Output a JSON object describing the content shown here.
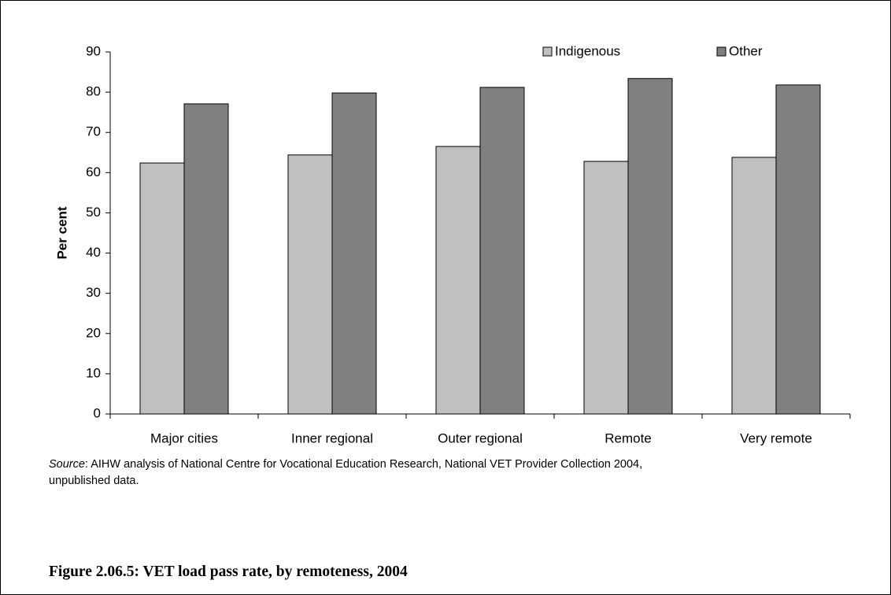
{
  "chart_data": {
    "type": "bar",
    "categories": [
      "Major cities",
      "Inner regional",
      "Outer regional",
      "Remote",
      "Very remote"
    ],
    "series": [
      {
        "name": "Indigenous",
        "color": "#c0c0c0",
        "values": [
          62.4,
          64.4,
          66.5,
          62.8,
          63.8
        ]
      },
      {
        "name": "Other",
        "color": "#808080",
        "values": [
          77.1,
          79.8,
          81.2,
          83.4,
          81.8
        ]
      }
    ],
    "ylabel": "Per cent",
    "ylim": [
      0,
      90
    ],
    "yticks": [
      0,
      10,
      20,
      30,
      40,
      50,
      60,
      70,
      80,
      90
    ],
    "grid": false,
    "legend": "top right"
  },
  "source": {
    "label": "Source",
    "lines": [
      ": AIHW analysis of National Centre for Vocational Education Research, National VET Provider Collection 2004,",
      "unpublished data."
    ]
  },
  "caption": "Figure 2.06.5: VET load pass rate, by remoteness, 2004"
}
